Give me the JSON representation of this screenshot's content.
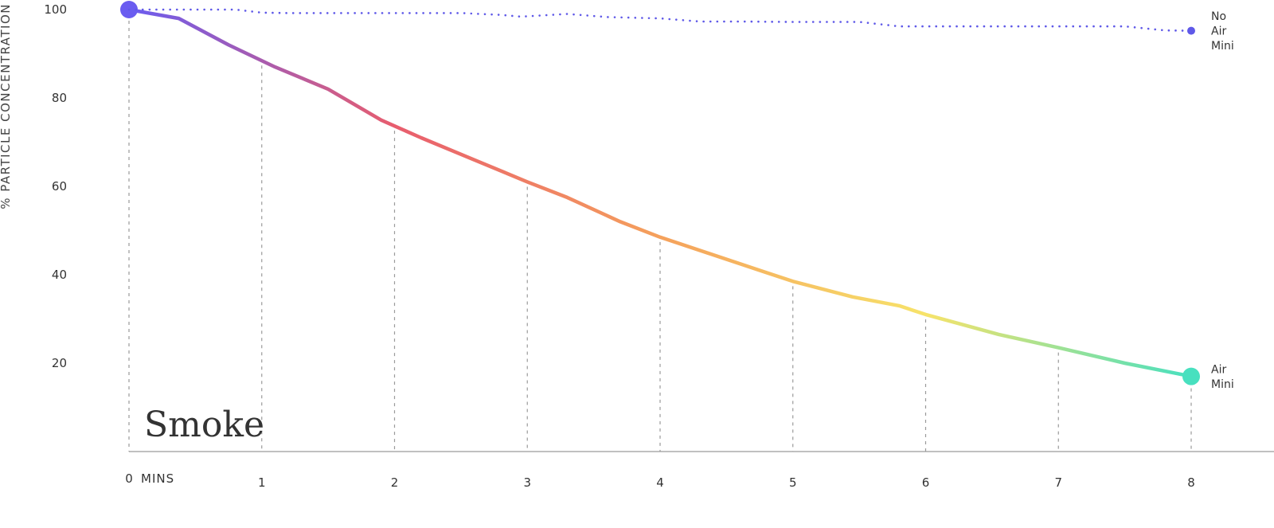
{
  "chart_data": {
    "type": "line",
    "title": "Smoke",
    "ylabel": "% PARTICLE CONCENTRATION",
    "x_unit": "MINS",
    "x_ticks": [
      0,
      1,
      2,
      3,
      4,
      5,
      6,
      7,
      8
    ],
    "y_ticks": [
      20,
      40,
      60,
      80,
      100
    ],
    "xlim": [
      0,
      8
    ],
    "ylim": [
      0,
      100
    ],
    "grid": "vertical dashed",
    "series": [
      {
        "name_lines": [
          "Air",
          "Mini"
        ],
        "style": "solid-gradient",
        "colors": [
          "#6a5cf0",
          "#e85d6e",
          "#f5a15c",
          "#f7e36a",
          "#48e0bf"
        ],
        "x": [
          0,
          0.375,
          0.75,
          1.1,
          1.5,
          1.9,
          2.2,
          2.6,
          3.0,
          3.3,
          3.7,
          4.0,
          4.4,
          4.8,
          5.0,
          5.45,
          5.8,
          6.0,
          6.55,
          7.0,
          7.5,
          8.0
        ],
        "y": [
          100,
          98,
          92,
          87,
          82,
          75,
          71,
          66,
          61,
          57.5,
          52,
          48.5,
          44.5,
          40.5,
          38.5,
          35,
          33,
          31,
          26.5,
          23.5,
          20,
          17
        ]
      },
      {
        "name_lines": [
          "No",
          "Air",
          "Mini"
        ],
        "style": "dotted",
        "colors": [
          "#5f59e8"
        ],
        "x": [
          0,
          0.3,
          0.6,
          0.8,
          1.0,
          1.2,
          1.5,
          1.8,
          2.2,
          2.5,
          2.8,
          2.95,
          3.3,
          3.6,
          4.0,
          4.3,
          4.6,
          5.0,
          5.5,
          5.8,
          6.0,
          6.5,
          7.0,
          7.5,
          7.8,
          8.0
        ],
        "y": [
          100,
          100,
          100,
          100,
          99.3,
          99.2,
          99.2,
          99.2,
          99.2,
          99.2,
          98.8,
          98.4,
          99,
          98.3,
          98,
          97.3,
          97.3,
          97.2,
          97.2,
          96.2,
          96.2,
          96.2,
          96.2,
          96.2,
          95.3,
          95.2
        ]
      }
    ]
  }
}
